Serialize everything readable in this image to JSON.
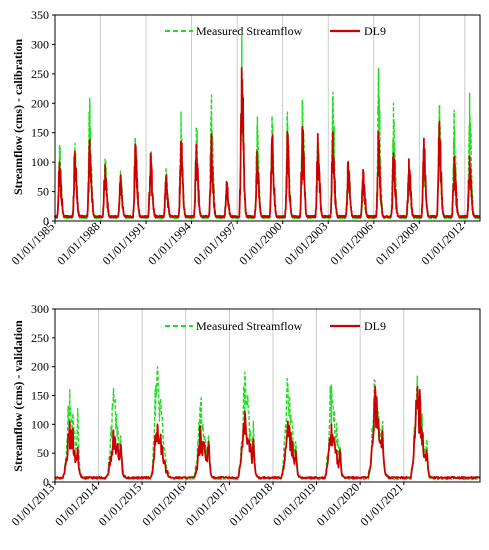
{
  "chart_data": [
    {
      "type": "line",
      "ylabel": "Streamflow (cms) - calibration",
      "ylim": [
        0,
        350
      ],
      "yticks": [
        0,
        50,
        100,
        150,
        200,
        250,
        300,
        350
      ],
      "xlim": [
        "1985-01-01",
        "2012-12-31"
      ],
      "xtick_dates": [
        "1985-01-01",
        "1988-01-01",
        "1991-01-01",
        "1994-01-01",
        "1997-01-01",
        "2000-01-01",
        "2003-01-01",
        "2006-01-01",
        "2009-01-01",
        "2012-01-01"
      ],
      "xtick_labels": [
        "01/01/1985",
        "01/01/1988",
        "01/01/1991",
        "01/01/1994",
        "01/01/1997",
        "01/01/2000",
        "01/01/2003",
        "01/01/2006",
        "01/01/2009",
        "01/01/2012"
      ],
      "legend_position": "top-right",
      "grid": "vertical",
      "series": [
        {
          "name": "Measured Streamflow",
          "color": "#22dd22",
          "style": "dashed",
          "peak_dates": [
            "1985-04-20",
            "1986-04-25",
            "1987-04-15",
            "1988-04-20",
            "1989-04-25",
            "1990-04-20",
            "1991-04-20",
            "1992-04-25",
            "1993-04-20",
            "1994-04-25",
            "1995-04-20",
            "1996-04-25",
            "1997-04-20",
            "1998-04-25",
            "1999-04-20",
            "2000-04-25",
            "2001-04-20",
            "2002-04-25",
            "2003-04-20",
            "2004-04-25",
            "2005-04-20",
            "2006-04-25",
            "2007-04-20",
            "2008-04-25",
            "2009-04-20",
            "2010-04-25",
            "2011-04-20",
            "2012-04-25"
          ],
          "peak_values": [
            130,
            132,
            210,
            105,
            85,
            140,
            115,
            85,
            185,
            160,
            207,
            65,
            285,
            162,
            178,
            185,
            195,
            150,
            210,
            103,
            55,
            260,
            200,
            80,
            110,
            195,
            188,
            217
          ]
        },
        {
          "name": "DL9",
          "color": "#cc0000",
          "style": "solid",
          "peak_dates": [
            "1985-04-20",
            "1986-04-25",
            "1987-04-15",
            "1988-04-20",
            "1989-04-25",
            "1990-04-20",
            "1991-04-20",
            "1992-04-25",
            "1993-04-20",
            "1994-04-25",
            "1995-04-20",
            "1996-04-25",
            "1997-04-20",
            "1998-04-25",
            "1999-04-20",
            "2000-04-25",
            "2001-04-20",
            "2002-04-25",
            "2003-04-20",
            "2004-04-25",
            "2005-04-20",
            "2006-04-25",
            "2007-04-20",
            "2008-04-25",
            "2009-04-20",
            "2010-04-25",
            "2011-04-20",
            "2012-04-25"
          ],
          "peak_values": [
            100,
            118,
            138,
            95,
            75,
            130,
            113,
            75,
            135,
            130,
            140,
            62,
            260,
            118,
            140,
            150,
            160,
            148,
            145,
            100,
            87,
            138,
            115,
            105,
            140,
            165,
            100,
            110
          ]
        }
      ]
    },
    {
      "type": "line",
      "ylabel": "Streamflow (cms) - validation",
      "ylim": [
        0,
        300
      ],
      "yticks": [
        0,
        50,
        100,
        150,
        200,
        250,
        300
      ],
      "xlim": [
        "2013-01-01",
        "2022-10-01"
      ],
      "xtick_dates": [
        "2013-01-01",
        "2014-01-01",
        "2015-01-01",
        "2016-01-01",
        "2017-01-01",
        "2018-01-01",
        "2019-01-01",
        "2020-01-01",
        "2021-01-01"
      ],
      "xtick_labels": [
        "01/01/2013",
        "01/01/2014",
        "01/01/2015",
        "01/01/2016",
        "01/01/2017",
        "01/01/2018",
        "01/01/2019",
        "01/01/2020",
        "01/01/2021"
      ],
      "legend_position": "top-right",
      "grid": "vertical",
      "series": [
        {
          "name": "Measured Streamflow",
          "color": "#22dd22",
          "style": "dashed",
          "peak_dates": [
            "2013-05-05",
            "2014-05-05",
            "2015-05-10",
            "2016-05-05",
            "2017-05-10",
            "2018-05-05",
            "2019-05-05",
            "2020-05-05",
            "2021-04-25"
          ],
          "peak_values": [
            160,
            157,
            200,
            140,
            190,
            170,
            168,
            175,
            173
          ],
          "secondary_dates": [
            "2013-07-10",
            "2014-07-05",
            "2015-04-20",
            "2016-07-10",
            "2017-07-20",
            "2018-07-10",
            "2019-07-15",
            "2020-07-05",
            "2021-07-10"
          ],
          "secondary_values": [
            127,
            80,
            160,
            80,
            105,
            70,
            60,
            100,
            70
          ]
        },
        {
          "name": "DL9",
          "color": "#cc0000",
          "style": "solid",
          "peak_dates": [
            "2013-05-05",
            "2014-05-05",
            "2015-05-10",
            "2016-05-05",
            "2017-05-10",
            "2018-05-05",
            "2019-05-05",
            "2020-05-05",
            "2021-04-25"
          ],
          "peak_values": [
            105,
            90,
            100,
            90,
            122,
            105,
            100,
            165,
            165
          ],
          "secondary_dates": [
            "2013-07-10",
            "2014-07-05",
            "2015-04-20",
            "2016-07-10",
            "2017-07-20",
            "2018-07-10",
            "2019-07-15",
            "2020-07-05",
            "2021-07-10"
          ],
          "secondary_values": [
            60,
            65,
            80,
            70,
            75,
            55,
            55,
            90,
            55
          ]
        }
      ]
    }
  ]
}
